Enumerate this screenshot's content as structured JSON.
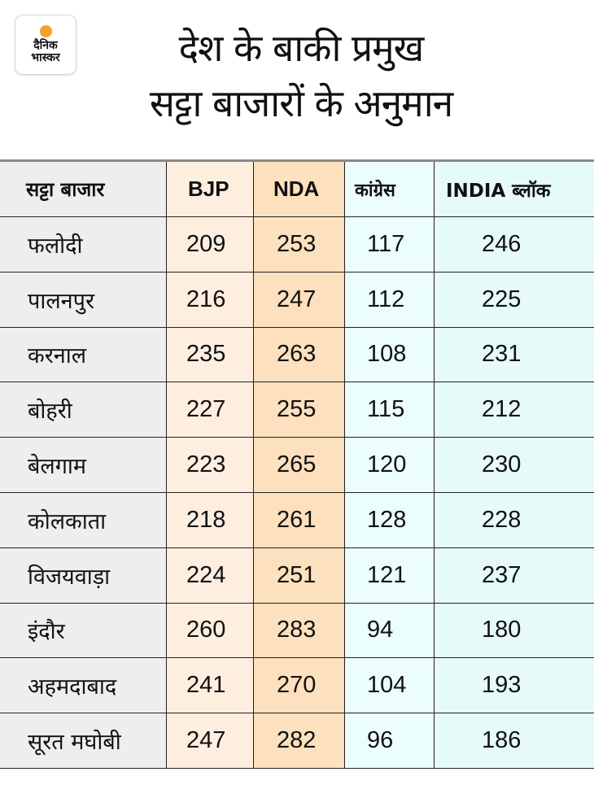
{
  "logo": {
    "line1": "दैनिक",
    "line2": "भास्कर",
    "sun_color": "#f7a12a"
  },
  "title": {
    "line1": "देश के बाकी प्रमुख",
    "line2": "सट्टा बाजारों के अनुमान"
  },
  "colors": {
    "market_col": "#eeeeee",
    "bjp_col": "#feeee0",
    "nda_col": "#fde0bd",
    "congress_col": "#ebfdfc",
    "india_col": "#e6fbf8"
  },
  "table": {
    "headers": [
      "सट्टा बाजार",
      "BJP",
      "NDA",
      "कांग्रेस",
      "INDIA ब्लॉक"
    ],
    "rows": [
      {
        "market": "फलोदी",
        "bjp": "209",
        "nda": "253",
        "congress": "117",
        "india": "246"
      },
      {
        "market": "पालनपुर",
        "bjp": "216",
        "nda": "247",
        "congress": "112",
        "india": "225"
      },
      {
        "market": "करनाल",
        "bjp": "235",
        "nda": "263",
        "congress": "108",
        "india": "231"
      },
      {
        "market": "बोहरी",
        "bjp": "227",
        "nda": "255",
        "congress": "115",
        "india": "212"
      },
      {
        "market": "बेलगाम",
        "bjp": "223",
        "nda": "265",
        "congress": "120",
        "india": "230"
      },
      {
        "market": "कोलकाता",
        "bjp": "218",
        "nda": "261",
        "congress": "128",
        "india": "228"
      },
      {
        "market": "विजयवाड़ा",
        "bjp": "224",
        "nda": "251",
        "congress": "121",
        "india": "237"
      },
      {
        "market": "इंदौर",
        "bjp": "260",
        "nda": "283",
        "congress": "94",
        "india": "180"
      },
      {
        "market": "अहमदाबाद",
        "bjp": "241",
        "nda": "270",
        "congress": "104",
        "india": "193"
      },
      {
        "market": "सूरत मघोबी",
        "bjp": "247",
        "nda": "282",
        "congress": "96",
        "india": "186"
      }
    ]
  }
}
